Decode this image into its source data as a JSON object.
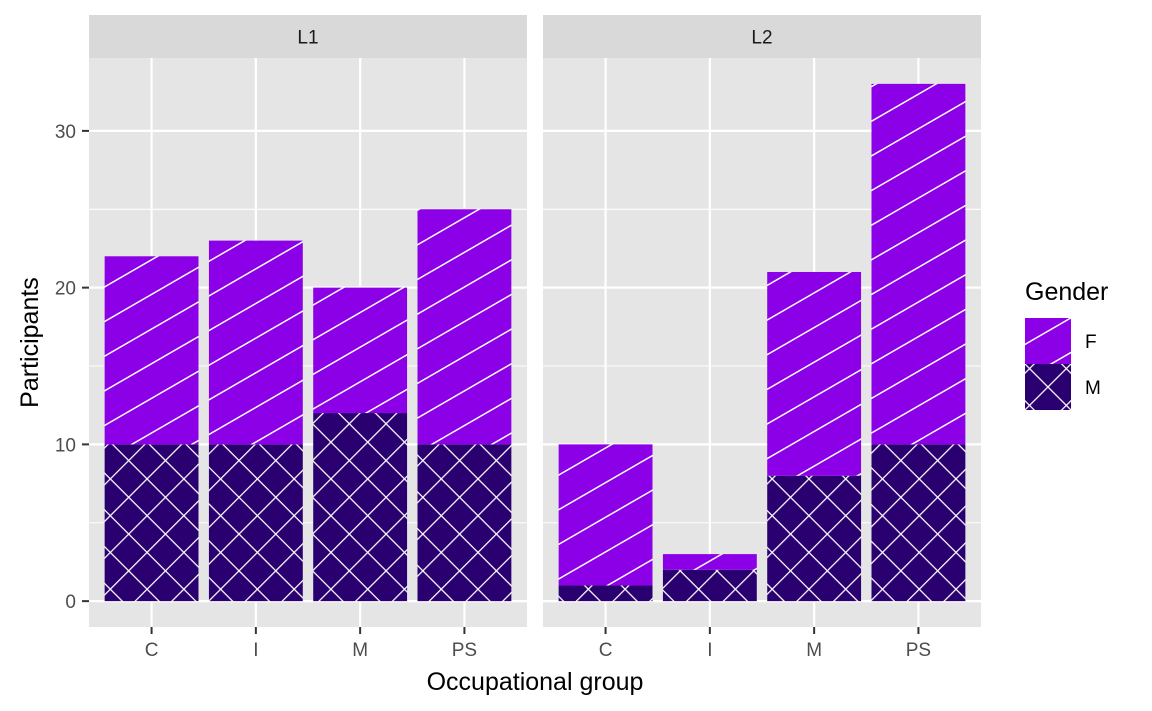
{
  "chart_data": {
    "type": "bar",
    "stacked": true,
    "facets": [
      {
        "label": "L1",
        "categories": [
          "C",
          "I",
          "M",
          "PS"
        ],
        "series": [
          {
            "name": "M",
            "values": [
              10,
              10,
              12,
              10
            ]
          },
          {
            "name": "F",
            "values": [
              12,
              13,
              8,
              15
            ]
          }
        ]
      },
      {
        "label": "L2",
        "categories": [
          "C",
          "I",
          "M",
          "PS"
        ],
        "series": [
          {
            "name": "M",
            "values": [
              1,
              2,
              8,
              10
            ]
          },
          {
            "name": "F",
            "values": [
              9,
              1,
              13,
              23
            ]
          }
        ]
      }
    ],
    "xlabel": "Occupational group",
    "ylabel": "Participants",
    "ylim": [
      -1.65,
      34.65
    ],
    "yticks": [
      0,
      10,
      20,
      30
    ],
    "grid": true,
    "legend": {
      "title": "Gender",
      "position": "right",
      "entries": [
        {
          "label": "F",
          "color": "#8B00E6",
          "pattern": "stripe"
        },
        {
          "label": "M",
          "color": "#2A0070",
          "pattern": "crosshatch"
        }
      ]
    },
    "colors": {
      "F": "#8B00E6",
      "M": "#2A0070",
      "panel_background": "#E5E5E5",
      "strip_background": "#D9D9D9",
      "grid": "#FFFFFF"
    }
  }
}
